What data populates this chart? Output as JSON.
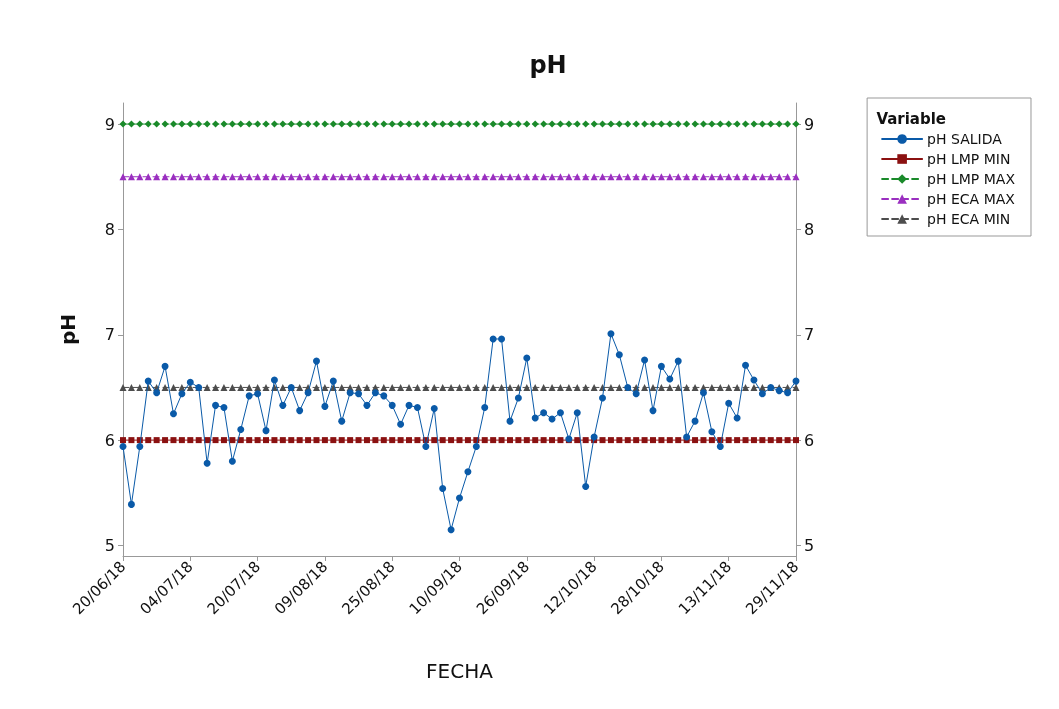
{
  "chart_data": {
    "type": "line",
    "title": "pH",
    "xlabel": "FECHA",
    "ylabel": "pH",
    "legend_title": "Variable",
    "legend": "right",
    "grid": false,
    "categories": [
      "20/06/18",
      null,
      null,
      null,
      null,
      null,
      null,
      null,
      "04/07/18",
      null,
      null,
      null,
      null,
      null,
      null,
      null,
      "20/07/18",
      null,
      null,
      null,
      null,
      null,
      null,
      null,
      "09/08/18",
      null,
      null,
      null,
      null,
      null,
      null,
      null,
      "25/08/18",
      null,
      null,
      null,
      null,
      null,
      null,
      null,
      "10/09/18",
      null,
      null,
      null,
      null,
      null,
      null,
      null,
      "26/09/18",
      null,
      null,
      null,
      null,
      null,
      null,
      null,
      "12/10/18",
      null,
      null,
      null,
      null,
      null,
      null,
      null,
      "28/10/18",
      null,
      null,
      null,
      null,
      null,
      null,
      null,
      "13/11/18",
      null,
      null,
      null,
      null,
      null,
      null,
      null,
      "29/11/18"
    ],
    "ylim": [
      4.9,
      9.2
    ],
    "yticks": [
      5,
      6,
      7,
      8,
      9
    ],
    "y2lim": [
      4.9,
      9.2
    ],
    "y2ticks": [
      5,
      6,
      7,
      8,
      9
    ],
    "series": [
      {
        "name": "pH SALIDA",
        "color": "#0a5aa8",
        "marker": "circle",
        "line_style": "solid",
        "values": [
          5.94,
          5.39,
          5.94,
          6.56,
          6.45,
          6.7,
          6.25,
          6.44,
          6.55,
          6.5,
          5.78,
          6.33,
          6.31,
          5.8,
          6.1,
          6.42,
          6.44,
          6.09,
          6.57,
          6.33,
          6.5,
          6.28,
          6.45,
          6.75,
          6.32,
          6.56,
          6.18,
          6.45,
          6.44,
          6.33,
          6.45,
          6.42,
          6.33,
          6.15,
          6.33,
          6.31,
          5.94,
          6.3,
          5.54,
          5.15,
          5.45,
          5.7,
          5.94,
          6.31,
          6.96,
          6.96,
          6.18,
          6.4,
          6.78,
          6.21,
          6.26,
          6.2,
          6.26,
          6.01,
          6.26,
          5.56,
          6.03,
          6.4,
          7.01,
          6.81,
          6.5,
          6.44,
          6.76,
          6.28,
          6.7,
          6.58,
          6.75,
          6.03,
          6.18,
          6.45,
          6.08,
          5.94,
          6.35,
          6.21,
          6.71,
          6.57,
          6.44,
          6.5,
          6.47,
          6.45,
          6.56
        ]
      },
      {
        "name": "pH LMP MIN",
        "color": "#8b1111",
        "marker": "square",
        "line_style": "solid",
        "values": [
          6,
          6,
          6,
          6,
          6,
          6,
          6,
          6,
          6,
          6,
          6,
          6,
          6,
          6,
          6,
          6,
          6,
          6,
          6,
          6,
          6,
          6,
          6,
          6,
          6,
          6,
          6,
          6,
          6,
          6,
          6,
          6,
          6,
          6,
          6,
          6,
          6,
          6,
          6,
          6,
          6,
          6,
          6,
          6,
          6,
          6,
          6,
          6,
          6,
          6,
          6,
          6,
          6,
          6,
          6,
          6,
          6,
          6,
          6,
          6,
          6,
          6,
          6,
          6,
          6,
          6,
          6,
          6,
          6,
          6,
          6,
          6,
          6,
          6,
          6,
          6,
          6,
          6,
          6,
          6,
          6
        ]
      },
      {
        "name": "pH LMP MAX",
        "color": "#1a8a2a",
        "marker": "diamond",
        "line_style": "dashed",
        "values": [
          9,
          9,
          9,
          9,
          9,
          9,
          9,
          9,
          9,
          9,
          9,
          9,
          9,
          9,
          9,
          9,
          9,
          9,
          9,
          9,
          9,
          9,
          9,
          9,
          9,
          9,
          9,
          9,
          9,
          9,
          9,
          9,
          9,
          9,
          9,
          9,
          9,
          9,
          9,
          9,
          9,
          9,
          9,
          9,
          9,
          9,
          9,
          9,
          9,
          9,
          9,
          9,
          9,
          9,
          9,
          9,
          9,
          9,
          9,
          9,
          9,
          9,
          9,
          9,
          9,
          9,
          9,
          9,
          9,
          9,
          9,
          9,
          9,
          9,
          9,
          9,
          9,
          9,
          9,
          9,
          9
        ]
      },
      {
        "name": "pH ECA MAX",
        "color": "#9a2fc0",
        "marker": "triangle",
        "line_style": "dashed",
        "values": [
          8.5,
          8.5,
          8.5,
          8.5,
          8.5,
          8.5,
          8.5,
          8.5,
          8.5,
          8.5,
          8.5,
          8.5,
          8.5,
          8.5,
          8.5,
          8.5,
          8.5,
          8.5,
          8.5,
          8.5,
          8.5,
          8.5,
          8.5,
          8.5,
          8.5,
          8.5,
          8.5,
          8.5,
          8.5,
          8.5,
          8.5,
          8.5,
          8.5,
          8.5,
          8.5,
          8.5,
          8.5,
          8.5,
          8.5,
          8.5,
          8.5,
          8.5,
          8.5,
          8.5,
          8.5,
          8.5,
          8.5,
          8.5,
          8.5,
          8.5,
          8.5,
          8.5,
          8.5,
          8.5,
          8.5,
          8.5,
          8.5,
          8.5,
          8.5,
          8.5,
          8.5,
          8.5,
          8.5,
          8.5,
          8.5,
          8.5,
          8.5,
          8.5,
          8.5,
          8.5,
          8.5,
          8.5,
          8.5,
          8.5,
          8.5,
          8.5,
          8.5,
          8.5,
          8.5,
          8.5,
          8.5
        ]
      },
      {
        "name": "pH ECA MIN",
        "color": "#4d4d4d",
        "marker": "triangle",
        "line_style": "dashed",
        "values": [
          6.5,
          6.5,
          6.5,
          6.5,
          6.5,
          6.5,
          6.5,
          6.5,
          6.5,
          6.5,
          6.5,
          6.5,
          6.5,
          6.5,
          6.5,
          6.5,
          6.5,
          6.5,
          6.5,
          6.5,
          6.5,
          6.5,
          6.5,
          6.5,
          6.5,
          6.5,
          6.5,
          6.5,
          6.5,
          6.5,
          6.5,
          6.5,
          6.5,
          6.5,
          6.5,
          6.5,
          6.5,
          6.5,
          6.5,
          6.5,
          6.5,
          6.5,
          6.5,
          6.5,
          6.5,
          6.5,
          6.5,
          6.5,
          6.5,
          6.5,
          6.5,
          6.5,
          6.5,
          6.5,
          6.5,
          6.5,
          6.5,
          6.5,
          6.5,
          6.5,
          6.5,
          6.5,
          6.5,
          6.5,
          6.5,
          6.5,
          6.5,
          6.5,
          6.5,
          6.5,
          6.5,
          6.5,
          6.5,
          6.5,
          6.5,
          6.5,
          6.5,
          6.5,
          6.5,
          6.5,
          6.5
        ]
      }
    ]
  }
}
